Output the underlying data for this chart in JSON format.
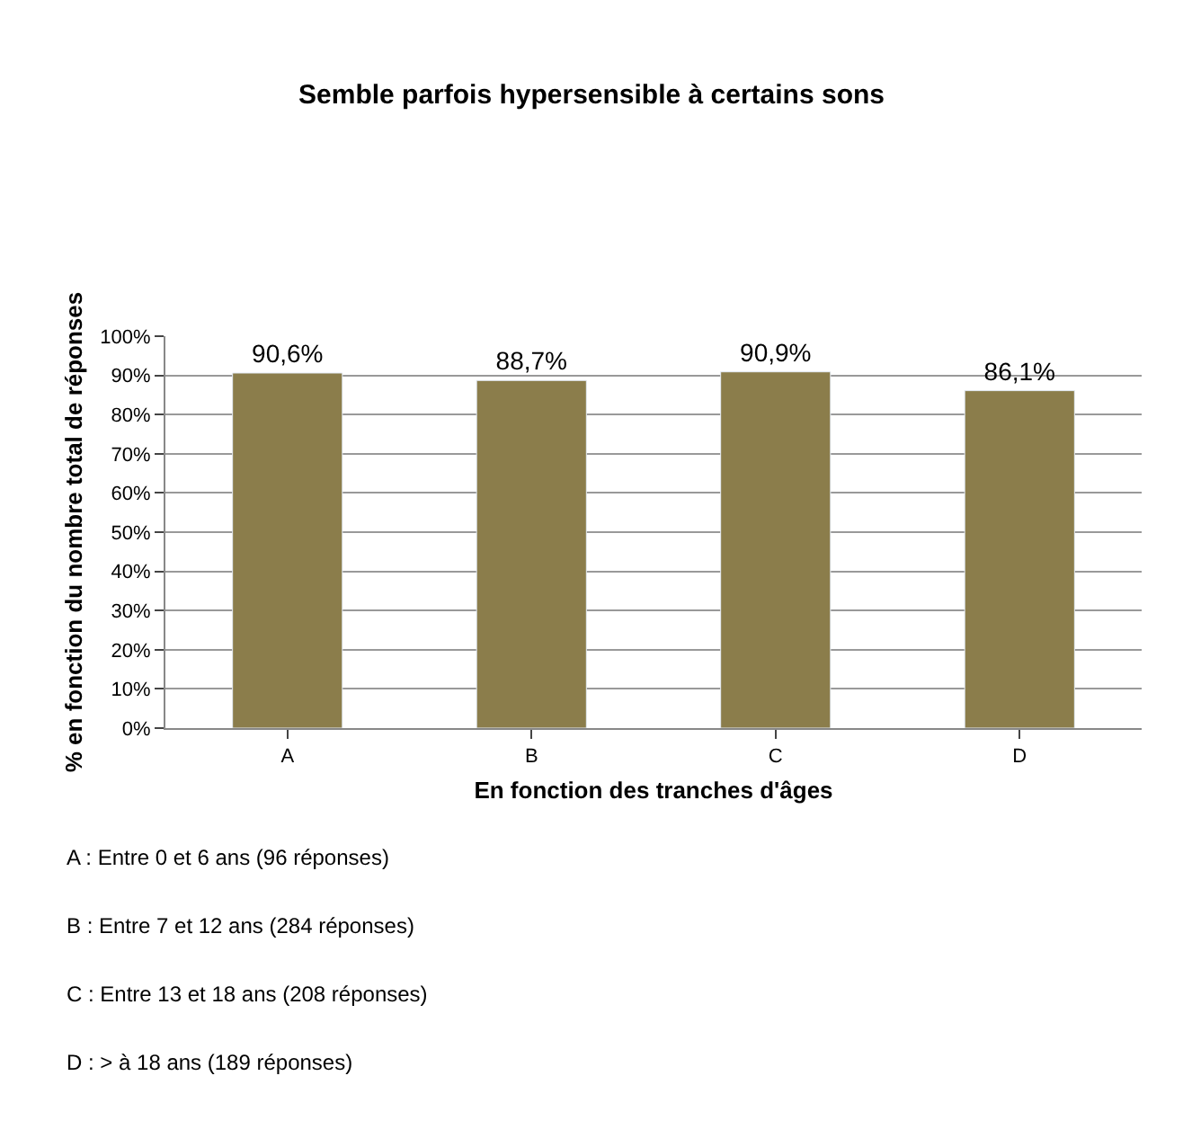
{
  "chart_data": {
    "type": "bar",
    "title": "Semble parfois hypersensible à certains sons",
    "xlabel": "En fonction des tranches d'âges",
    "ylabel": "% en fonction du nombre total de réponses",
    "categories": [
      "A",
      "B",
      "C",
      "D"
    ],
    "values": [
      90.6,
      88.7,
      90.9,
      86.1
    ],
    "value_labels": [
      "90,6%",
      "88,7%",
      "90,9%",
      "86,1%"
    ],
    "color": "#8b7d4b",
    "ylim": [
      0,
      100
    ],
    "yticks": [
      {
        "value": 0,
        "label": "0%"
      },
      {
        "value": 10,
        "label": "10%"
      },
      {
        "value": 20,
        "label": "20%"
      },
      {
        "value": 30,
        "label": "30%"
      },
      {
        "value": 40,
        "label": "40%"
      },
      {
        "value": 50,
        "label": "50%"
      },
      {
        "value": 60,
        "label": "60%"
      },
      {
        "value": 70,
        "label": "70%"
      },
      {
        "value": 80,
        "label": "80%"
      },
      {
        "value": 90,
        "label": "90%"
      },
      {
        "value": 100,
        "label": "100%"
      }
    ],
    "grid": "y",
    "annotations": [
      "A : Entre 0 et 6 ans (96 réponses)",
      "B : Entre 7 et 12 ans (284 réponses)",
      "C : Entre 13 et 18 ans (208 réponses)",
      "D : > à 18 ans (189 réponses)"
    ]
  }
}
